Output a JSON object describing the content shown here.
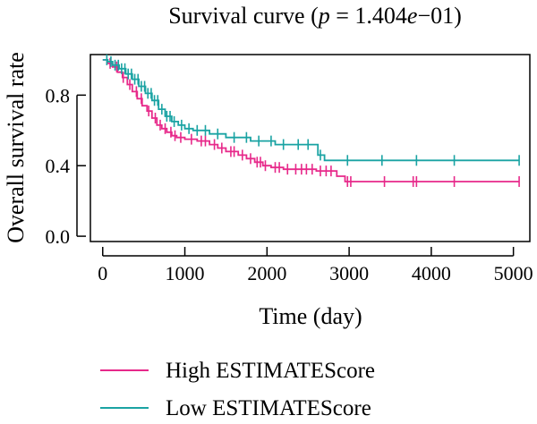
{
  "chart_data": {
    "type": "line",
    "title_prefix": "Survival curve (",
    "title_p": "p",
    "title_value": " = 1.404",
    "title_e": "e",
    "title_suffix": "−01)",
    "xlabel": "Time (day)",
    "ylabel": "Overall survival rate",
    "xlim": [
      -150,
      5200
    ],
    "ylim": [
      -0.03,
      1.03
    ],
    "x_ticks": [
      0,
      1000,
      2000,
      3000,
      4000,
      5000
    ],
    "x_tick_labels": [
      "0",
      "1000",
      "2000",
      "3000",
      "4000",
      "5000"
    ],
    "y_ticks": [
      0.0,
      0.4,
      0.8
    ],
    "y_tick_labels": [
      "0.0",
      "0.4",
      "0.8"
    ],
    "grid": false,
    "legend_position": "bottom",
    "series": [
      {
        "name": "High ESTIMATEScore",
        "color": "#e7298a",
        "steps": [
          [
            0,
            1.0
          ],
          [
            60,
            0.98
          ],
          [
            120,
            0.96
          ],
          [
            180,
            0.93
          ],
          [
            240,
            0.9
          ],
          [
            300,
            0.86
          ],
          [
            360,
            0.82
          ],
          [
            420,
            0.78
          ],
          [
            480,
            0.74
          ],
          [
            540,
            0.71
          ],
          [
            600,
            0.67
          ],
          [
            660,
            0.63
          ],
          [
            720,
            0.61
          ],
          [
            780,
            0.59
          ],
          [
            840,
            0.57
          ],
          [
            900,
            0.56
          ],
          [
            1000,
            0.55
          ],
          [
            1150,
            0.54
          ],
          [
            1300,
            0.52
          ],
          [
            1400,
            0.5
          ],
          [
            1500,
            0.48
          ],
          [
            1650,
            0.46
          ],
          [
            1750,
            0.44
          ],
          [
            1850,
            0.42
          ],
          [
            1950,
            0.4
          ],
          [
            2050,
            0.39
          ],
          [
            2200,
            0.38
          ],
          [
            2600,
            0.37
          ],
          [
            2850,
            0.34
          ],
          [
            2950,
            0.31
          ],
          [
            5070,
            0.31
          ]
        ],
        "censor_x": [
          90,
          170,
          250,
          330,
          410,
          470,
          560,
          640,
          700,
          760,
          830,
          880,
          950,
          1080,
          1200,
          1250,
          1360,
          1450,
          1560,
          1600,
          1700,
          1800,
          1880,
          1920,
          1980,
          2100,
          2150,
          2250,
          2350,
          2420,
          2480,
          2550,
          2650,
          2720,
          2780,
          2980,
          3020,
          3430,
          3780,
          3820,
          4280,
          5070
        ]
      },
      {
        "name": "Low ESTIMATEScore",
        "color": "#1aa3a3",
        "steps": [
          [
            0,
            1.0
          ],
          [
            60,
            0.99
          ],
          [
            120,
            0.97
          ],
          [
            200,
            0.95
          ],
          [
            280,
            0.92
          ],
          [
            360,
            0.89
          ],
          [
            440,
            0.85
          ],
          [
            520,
            0.81
          ],
          [
            600,
            0.77
          ],
          [
            680,
            0.72
          ],
          [
            760,
            0.68
          ],
          [
            840,
            0.65
          ],
          [
            920,
            0.63
          ],
          [
            1000,
            0.61
          ],
          [
            1100,
            0.6
          ],
          [
            1300,
            0.58
          ],
          [
            1500,
            0.56
          ],
          [
            1800,
            0.54
          ],
          [
            2100,
            0.52
          ],
          [
            2620,
            0.46
          ],
          [
            2700,
            0.43
          ],
          [
            5070,
            0.43
          ]
        ],
        "censor_x": [
          50,
          100,
          150,
          190,
          230,
          270,
          310,
          350,
          390,
          430,
          470,
          510,
          550,
          590,
          630,
          670,
          720,
          780,
          820,
          870,
          960,
          1050,
          1150,
          1250,
          1400,
          1600,
          1750,
          1900,
          2050,
          2200,
          2380,
          2500,
          2650,
          2980,
          3400,
          3820,
          4280,
          5070
        ]
      }
    ]
  }
}
